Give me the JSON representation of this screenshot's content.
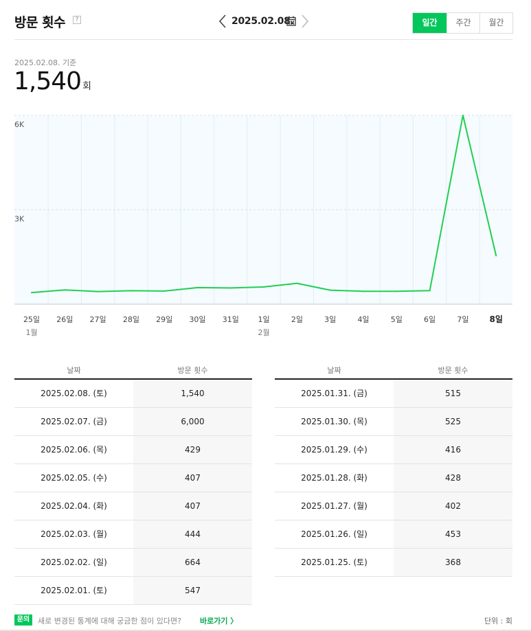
{
  "header": {
    "title": "방문 횟수",
    "help": "?",
    "date": "2025.02.08.",
    "tabs": [
      {
        "label": "일간",
        "active": true
      },
      {
        "label": "주간",
        "active": false
      },
      {
        "label": "월간",
        "active": false
      }
    ]
  },
  "summary": {
    "basis": "2025.02.08. 기준",
    "value": "1,540",
    "unit": "회"
  },
  "colors": {
    "accent": "#03c75a",
    "line": "#1fcf51",
    "plot_bg": "#f5fbff"
  },
  "chart_data": {
    "type": "line",
    "x": [
      "25일",
      "26일",
      "27일",
      "28일",
      "29일",
      "30일",
      "31일",
      "1일",
      "2일",
      "3일",
      "4일",
      "5일",
      "6일",
      "7일",
      "8일"
    ],
    "month_labels": [
      {
        "index": 0,
        "label": "1월"
      },
      {
        "index": 7,
        "label": "2월"
      }
    ],
    "series": [
      {
        "values": [
          368,
          453,
          402,
          428,
          416,
          525,
          515,
          547,
          664,
          444,
          407,
          407,
          429,
          6000,
          1540
        ]
      }
    ],
    "y_ticks": [
      {
        "value": 3000,
        "label": "3K"
      },
      {
        "value": 6000,
        "label": "6K"
      }
    ],
    "ylim": [
      0,
      6000
    ],
    "grid": true
  },
  "table_left": {
    "headers": [
      "날짜",
      "방문 횟수"
    ],
    "rows": [
      {
        "date": "2025.02.08. (토)",
        "value": "1,540"
      },
      {
        "date": "2025.02.07. (금)",
        "value": "6,000"
      },
      {
        "date": "2025.02.06. (목)",
        "value": "429"
      },
      {
        "date": "2025.02.05. (수)",
        "value": "407"
      },
      {
        "date": "2025.02.04. (화)",
        "value": "407"
      },
      {
        "date": "2025.02.03. (월)",
        "value": "444"
      },
      {
        "date": "2025.02.02. (일)",
        "value": "664"
      },
      {
        "date": "2025.02.01. (토)",
        "value": "547"
      }
    ]
  },
  "table_right": {
    "headers": [
      "날짜",
      "방문 횟수"
    ],
    "rows": [
      {
        "date": "2025.01.31. (금)",
        "value": "515"
      },
      {
        "date": "2025.01.30. (목)",
        "value": "525"
      },
      {
        "date": "2025.01.29. (수)",
        "value": "416"
      },
      {
        "date": "2025.01.28. (화)",
        "value": "428"
      },
      {
        "date": "2025.01.27. (월)",
        "value": "402"
      },
      {
        "date": "2025.01.26. (일)",
        "value": "453"
      },
      {
        "date": "2025.01.25. (토)",
        "value": "368"
      }
    ]
  },
  "footer": {
    "badge": "문의",
    "text": "새로 변경된 통계에 대해 궁금한 점이 있다면?",
    "link": "바로가기 〉",
    "unit": "단위 : 회"
  }
}
